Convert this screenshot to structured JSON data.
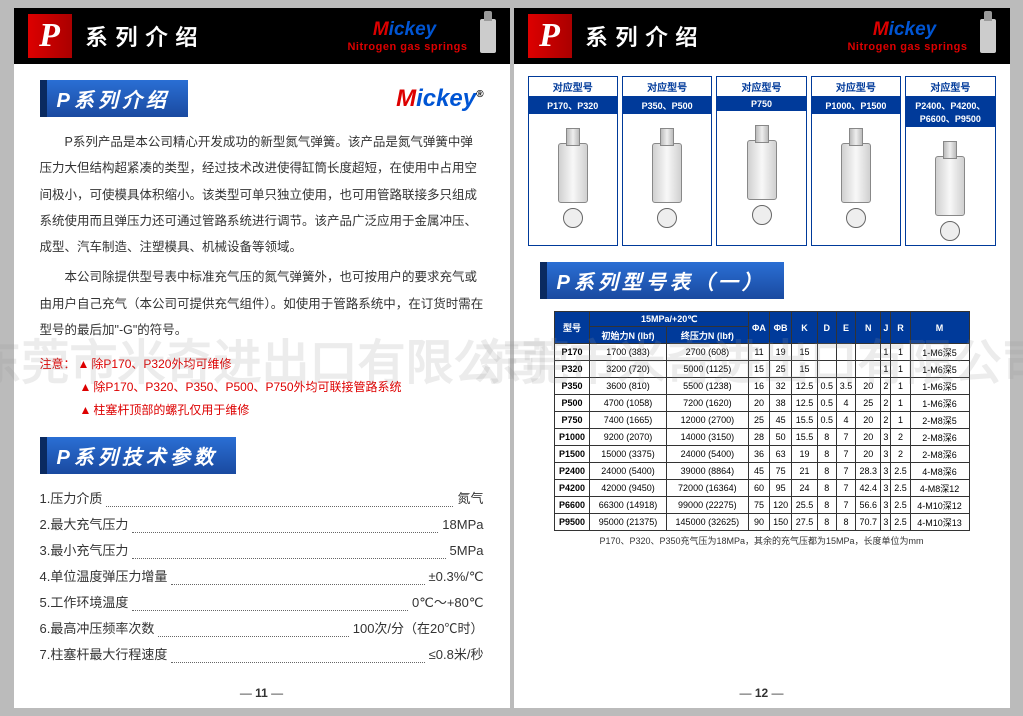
{
  "header": {
    "title": "系列介绍",
    "brand_m": "M",
    "brand_rest": "ickey",
    "subtitle": "Nitrogen gas springs"
  },
  "left": {
    "section1": "P系列介绍",
    "para1": "P系列产品是本公司精心开发成功的新型氮气弹簧。该产品是氮气弹簧中弹压力大但结构超紧凑的类型，经过技术改进使得缸筒长度超短，在使用中占用空间极小，可使模具体积缩小。该类型可单只独立使用，也可用管路联接多只组成系统使用而且弹压力还可通过管路系统进行调节。该产品广泛应用于金属冲压、成型、汽车制造、注塑模具、机械设备等领域。",
    "para2": "本公司除提供型号表中标准充气压的氮气弹簧外，也可按用户的要求充气或由用户自己充气（本公司可提供充气组件）。如使用于管路系统中，在订货时需在型号的最后加\"-G\"的符号。",
    "note_label": "注意：",
    "note1": "除P170、P320外均可维修",
    "note2": "除P170、P320、P350、P500、P750外均可联接管路系统",
    "note3": "柱塞杆顶部的螺孔仅用于维修",
    "section2": "P系列技术参数",
    "params": [
      {
        "n": "1.压力介质",
        "v": "氮气"
      },
      {
        "n": "2.最大充气压力",
        "v": "18MPa"
      },
      {
        "n": "3.最小充气压力",
        "v": "5MPa"
      },
      {
        "n": "4.单位温度弹压力增量",
        "v": "±0.3%/℃"
      },
      {
        "n": "5.工作环境温度",
        "v": "0℃～+80℃"
      },
      {
        "n": "6.最高冲压频率次数",
        "v": "100次/分（在20℃时）"
      },
      {
        "n": "7.柱塞杆最大行程速度",
        "v": "≤0.8米/秒"
      }
    ],
    "page": "11"
  },
  "right": {
    "model_hdr": "对应型号",
    "models": [
      {
        "n": "P170、P320"
      },
      {
        "n": "P350、P500"
      },
      {
        "n": "P750"
      },
      {
        "n": "P1000、P1500"
      },
      {
        "n": "P2400、P4200、P6600、P9500"
      }
    ],
    "section": "P系列型号表（一）",
    "th_group": "15MPa/+20℃",
    "th_model": "型号",
    "th_init": "初始力N (lbf)",
    "th_final": "终压力N (lbf)",
    "cols": [
      "ΦA",
      "ΦB",
      "K",
      "D",
      "E",
      "N",
      "J",
      "R",
      "M"
    ],
    "rows": [
      [
        "P170",
        "1700 (383)",
        "2700 (608)",
        "11",
        "19",
        "15",
        "",
        "",
        "",
        "1",
        "1",
        "1-M6深5"
      ],
      [
        "P320",
        "3200 (720)",
        "5000 (1125)",
        "15",
        "25",
        "15",
        "",
        "",
        "",
        "1",
        "1",
        "1-M6深5"
      ],
      [
        "P350",
        "3600 (810)",
        "5500 (1238)",
        "16",
        "32",
        "12.5",
        "0.5",
        "3.5",
        "20",
        "2",
        "1",
        "1-M6深5"
      ],
      [
        "P500",
        "4700 (1058)",
        "7200 (1620)",
        "20",
        "38",
        "12.5",
        "0.5",
        "4",
        "25",
        "2",
        "1",
        "1-M6深6"
      ],
      [
        "P750",
        "7400 (1665)",
        "12000 (2700)",
        "25",
        "45",
        "15.5",
        "0.5",
        "4",
        "20",
        "2",
        "1",
        "2-M8深5"
      ],
      [
        "P1000",
        "9200 (2070)",
        "14000 (3150)",
        "28",
        "50",
        "15.5",
        "8",
        "7",
        "20",
        "3",
        "2",
        "2-M8深6"
      ],
      [
        "P1500",
        "15000 (3375)",
        "24000 (5400)",
        "36",
        "63",
        "19",
        "8",
        "7",
        "20",
        "3",
        "2",
        "2-M8深6"
      ],
      [
        "P2400",
        "24000 (5400)",
        "39000 (8864)",
        "45",
        "75",
        "21",
        "8",
        "7",
        "28.3",
        "3",
        "2.5",
        "4-M8深6"
      ],
      [
        "P4200",
        "42000 (9450)",
        "72000 (16364)",
        "60",
        "95",
        "24",
        "8",
        "7",
        "42.4",
        "3",
        "2.5",
        "4-M8深12"
      ],
      [
        "P6600",
        "66300 (14918)",
        "99000 (22275)",
        "75",
        "120",
        "25.5",
        "8",
        "7",
        "56.6",
        "3",
        "2.5",
        "4-M10深12"
      ],
      [
        "P9500",
        "95000 (21375)",
        "145000 (32625)",
        "90",
        "150",
        "27.5",
        "8",
        "8",
        "70.7",
        "3",
        "2.5",
        "4-M10深13"
      ]
    ],
    "table_note": "P170、P320、P350充气压为18MPa，其余的充气压都为15MPa，长度单位为mm",
    "page": "12"
  },
  "watermark": "东莞市米奇进出口有限公司"
}
